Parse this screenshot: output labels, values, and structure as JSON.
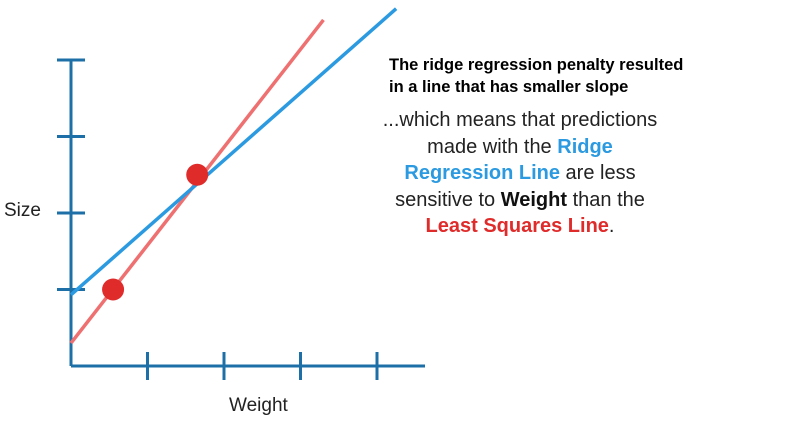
{
  "chart_data": {
    "type": "line",
    "xlabel": "Weight",
    "ylabel": "Size",
    "xlim": [
      0,
      5
    ],
    "ylim": [
      0,
      5
    ],
    "x_ticks": [
      1,
      2,
      3,
      4
    ],
    "y_ticks": [
      1,
      2,
      3,
      4
    ],
    "grid": false,
    "points": [
      {
        "x": 0.55,
        "y": 1.0,
        "color": "#e02b2b"
      },
      {
        "x": 1.65,
        "y": 2.5,
        "color": "#e02b2b"
      }
    ],
    "series": [
      {
        "type": "line",
        "intercept": 0.3,
        "slope": 1.28,
        "color": "#ef7070"
      },
      {
        "type": "line",
        "intercept": 0.93,
        "slope": 0.88,
        "color": "#2b9ae0"
      }
    ]
  },
  "caption": {
    "line1": "The ridge regression penalty resulted",
    "line2": "in a line that has smaller slope"
  },
  "explanation": {
    "p1": "...which means that predictions",
    "p2": "made with the ",
    "ridge_a": "Ridge",
    "ridge_b": "Regression Line",
    "p3": " are less",
    "p4": "sensitive to ",
    "weight": "Weight",
    "p5": " than the",
    "lsq": "Least Squares Line",
    "p6": "."
  }
}
